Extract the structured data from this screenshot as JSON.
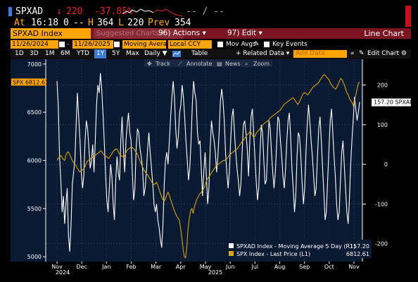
{
  "quote": {
    "ticker": "SPXAD",
    "arrow": "↓",
    "last": "220",
    "change": "-37.85%",
    "bid_ask": "-- / --",
    "at_label": "At",
    "time": "16:18",
    "volume": "0",
    "dash": "--",
    "high_label": "H",
    "high": "364",
    "low_label": "L",
    "low": "220",
    "prev_label": "Prev",
    "prev": "354"
  },
  "title_bar": {
    "index_field": "SPXAD Index",
    "suggested": "Suggested Charts ▾",
    "actions": "96) Actions ▾",
    "edit": "97) Edit ▾",
    "chart_type": "Line Chart"
  },
  "date_row": {
    "start_date": "11/26/2024",
    "end_date": "11/26/2025",
    "separator": "-",
    "study": "Moving Avera",
    "currency": "Local CCY",
    "mov_avgs": "Mov Avgs",
    "key_events": "Key Events"
  },
  "toolbar": {
    "periods": [
      "1D",
      "3D",
      "1M",
      "6M",
      "YTD",
      "1Y",
      "5Y",
      "Max"
    ],
    "selected_period": "1Y",
    "frequency": "Daily ▼",
    "table": "Table",
    "related": "+ Related Data ▾",
    "add_data_placeholder": "Add Data",
    "edit_chart": "Edit Chart"
  },
  "chart_tools": {
    "track": "Track",
    "annotate": "Annotate",
    "news": "News",
    "zoom": "Zoom"
  },
  "colors": {
    "background": "#0b1a33",
    "spxad_line": "#ffffff",
    "spx_line": "#d9a400",
    "amber": "#ffa500",
    "header_bar": "#7a1522"
  },
  "chart_data": {
    "type": "line",
    "x_tick_labels": [
      "Nov",
      "Dec",
      "Jan",
      "Feb",
      "Mar",
      "Apr",
      "May",
      "Jun",
      "Jul",
      "Aug",
      "Sep",
      "Oct",
      "Nov"
    ],
    "x_year_labels": [
      "2024",
      "2025"
    ],
    "left_axis": {
      "ticks": [
        5000,
        5500,
        6000,
        6500,
        7000
      ],
      "range": [
        4950,
        7050
      ]
    },
    "right_axis": {
      "ticks": [
        -200,
        -100,
        0,
        100,
        200
      ],
      "range": [
        -245,
        265
      ]
    },
    "last_value_tags": {
      "left": "SPX 6812.61",
      "right": "157.20 SPXAD"
    },
    "legend": [
      {
        "label": "SPXAD Index - Moving Average 5 Day (R1)",
        "value": "157.20",
        "color": "#ffffff"
      },
      {
        "label": "SPX Index - Last Price (L1)",
        "value": "6812.61",
        "color": "#d9a400"
      }
    ],
    "series": [
      {
        "name": "SPXAD Index - Moving Average 5 Day (R1)",
        "axis": "right",
        "values": [
          210,
          150,
          20,
          -40,
          -120,
          -80,
          -150,
          -100,
          -60,
          -180,
          -220,
          -150,
          -50,
          -20,
          10,
          100,
          180,
          120,
          60,
          -20,
          -60,
          -30,
          60,
          110,
          90,
          40,
          -10,
          10,
          50,
          -20,
          60,
          150,
          200,
          180,
          230,
          190,
          130,
          60,
          -20,
          -90,
          -120,
          -60,
          0,
          -30,
          -100,
          -140,
          -40,
          20,
          -20,
          -40,
          60,
          120,
          40,
          -20,
          60,
          100,
          130,
          80,
          60,
          -20,
          -90,
          -60,
          40,
          90,
          80,
          40,
          20,
          -10,
          -80,
          -60,
          -20,
          40,
          80,
          30,
          -10,
          -50,
          -100,
          -120,
          -100,
          -140,
          -160,
          -190,
          -210,
          -150,
          -50,
          10,
          30,
          0,
          60,
          120,
          170,
          210,
          170,
          90,
          40,
          70,
          130,
          150,
          200,
          170,
          120,
          60,
          10,
          -40,
          -10,
          60,
          150,
          210,
          180,
          160,
          80,
          50,
          60,
          -10,
          -80,
          -20,
          30,
          -30,
          -100,
          -60,
          40,
          110,
          80,
          60,
          30,
          -20,
          20,
          80,
          160,
          190,
          160,
          110,
          30,
          -20,
          -60,
          -20,
          60,
          120,
          140,
          80,
          30,
          -10,
          -40,
          -80,
          -50,
          30,
          100,
          110,
          80,
          40,
          -30,
          60,
          120,
          140,
          80,
          20,
          -40,
          -90,
          -60,
          30,
          100,
          80,
          10,
          -50,
          -40,
          40,
          110,
          90,
          30,
          -20,
          -60,
          -20,
          50,
          120,
          110,
          60,
          20,
          -30,
          -60,
          -10,
          60,
          110,
          130,
          70,
          -10,
          -60,
          -120,
          -80,
          20,
          80,
          70,
          20,
          -50,
          -100,
          -60,
          30,
          100,
          150,
          110,
          60,
          20,
          -30,
          -80,
          -60,
          20,
          90,
          120,
          60,
          -10,
          -70,
          -140,
          -120,
          -40,
          40,
          110,
          140,
          80,
          20,
          -30,
          -100,
          -140,
          -120,
          -40,
          30,
          60,
          0,
          -60,
          -120,
          -150,
          -90,
          0,
          60,
          110,
          170,
          140,
          110,
          130,
          157.2
        ]
      },
      {
        "name": "SPX Index - Last Price (L1)",
        "axis": "left",
        "values": [
          6000,
          6020,
          6040,
          6050,
          6030,
          6010,
          6000,
          6050,
          6080,
          6090,
          6060,
          6030,
          6000,
          5980,
          5960,
          5950,
          5920,
          5900,
          5880,
          5890,
          5900,
          5910,
          5930,
          5960,
          5990,
          6000,
          6010,
          6020,
          6030,
          6040,
          6050,
          6060,
          6070,
          6080,
          6090,
          6100,
          6080,
          6060,
          6050,
          6040,
          6030,
          6020,
          6040,
          6060,
          6080,
          6100,
          6110,
          6120,
          6110,
          6080,
          6060,
          6050,
          6040,
          6030,
          6060,
          6090,
          6110,
          6120,
          6130,
          6140,
          6130,
          6120,
          6100,
          6080,
          6060,
          6020,
          5990,
          5960,
          5930,
          5900,
          5880,
          5860,
          5850,
          5820,
          5800,
          5780,
          5760,
          5750,
          5760,
          5770,
          5740,
          5700,
          5660,
          5620,
          5590,
          5580,
          5600,
          5640,
          5670,
          5640,
          5600,
          5560,
          5520,
          5480,
          5450,
          5420,
          5400,
          5380,
          5300,
          5200,
          5080,
          5000,
          4990,
          5100,
          5300,
          5400,
          5480,
          5500,
          5450,
          5520,
          5560,
          5600,
          5620,
          5650,
          5660,
          5680,
          5700,
          5720,
          5760,
          5800,
          5820,
          5840,
          5860,
          5880,
          5900,
          5920,
          5940,
          5950,
          5960,
          5970,
          5980,
          5990,
          6000,
          6000,
          6010,
          6020,
          6040,
          6060,
          6070,
          6080,
          6090,
          6100,
          6110,
          6120,
          6140,
          6160,
          6180,
          6200,
          6210,
          6230,
          6250,
          6270,
          6280,
          6300,
          6290,
          6260,
          6240,
          6250,
          6280,
          6300,
          6310,
          6330,
          6350,
          6360,
          6380,
          6390,
          6400,
          6410,
          6420,
          6440,
          6450,
          6460,
          6470,
          6480,
          6490,
          6500,
          6510,
          6520,
          6540,
          6560,
          6580,
          6590,
          6600,
          6610,
          6620,
          6630,
          6640,
          6650,
          6640,
          6620,
          6600,
          6580,
          6600,
          6630,
          6660,
          6690,
          6700,
          6700,
          6690,
          6680,
          6700,
          6720,
          6740,
          6760,
          6770,
          6780,
          6790,
          6800,
          6820,
          6840,
          6860,
          6880,
          6890,
          6880,
          6860,
          6850,
          6830,
          6800,
          6780,
          6760,
          6750,
          6740,
          6760,
          6790,
          6820,
          6850,
          6840,
          6810,
          6780,
          6740,
          6700,
          6680,
          6640,
          6620,
          6600,
          6570,
          6620,
          6680,
          6740,
          6800,
          6812.61
        ]
      }
    ]
  }
}
